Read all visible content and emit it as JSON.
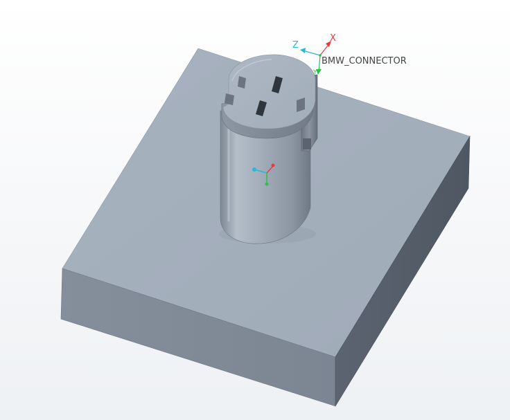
{
  "viewport": {
    "background": "#ffffff",
    "model_color": "#a2adbb"
  },
  "coordinate_system": {
    "name": "BMW_CONNECTOR",
    "x_label": "X",
    "y_label": "Y",
    "z_label": "Z",
    "x_color": "#e23c3c",
    "y_color": "#2ec04b",
    "z_color": "#29b8d8",
    "label_color": "#444444"
  },
  "local_csys": {
    "x_color": "#e23c3c",
    "y_color": "#2ec04b",
    "z_color": "#29b8d8"
  },
  "parts": {
    "base_block": "base-plate",
    "connector_body": "connector-cylinder",
    "connector_head": "connector-head"
  }
}
